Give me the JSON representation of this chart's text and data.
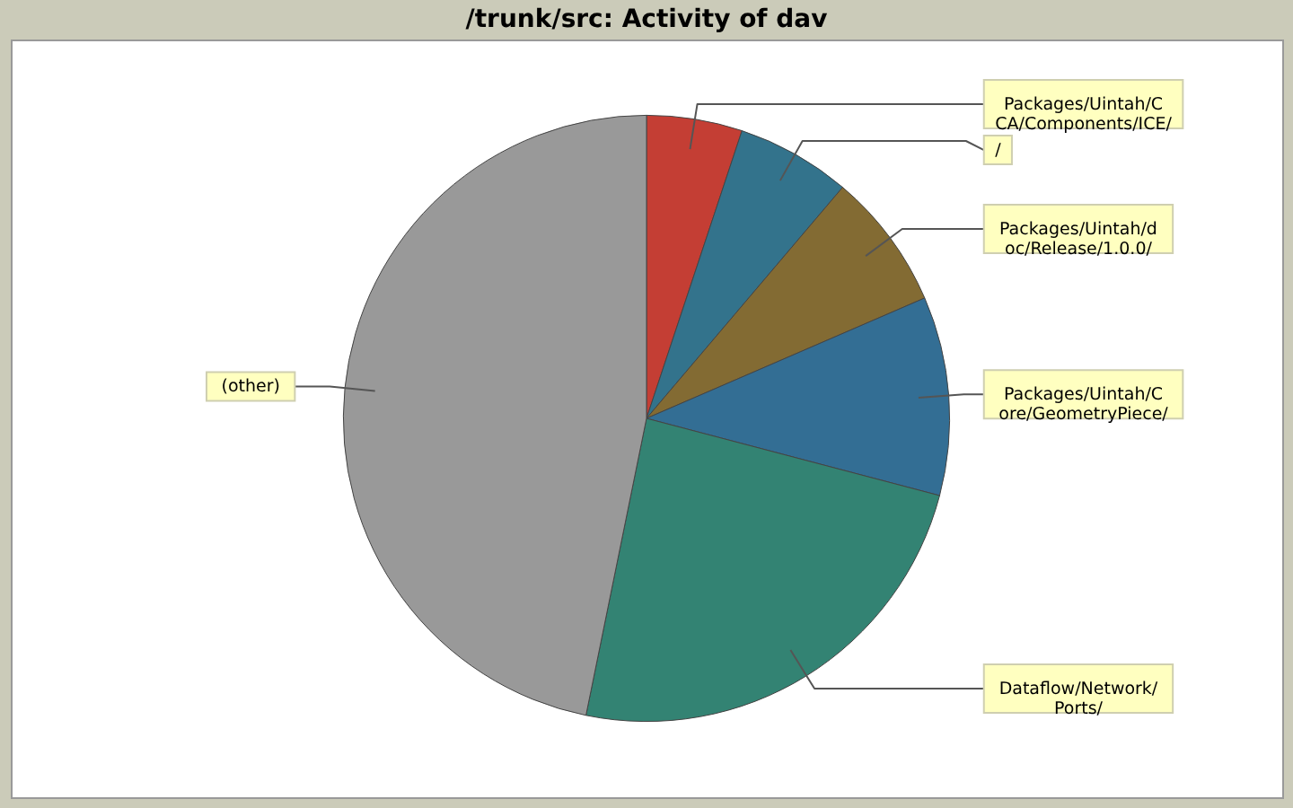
{
  "chart_data": {
    "type": "pie",
    "title": "/trunk/src: Activity of dav",
    "categories": [
      "Packages/Uintah/CCA/Components/ICE/",
      "/",
      "Packages/Uintah/doc/Release/1.0.0/",
      "Packages/Uintah/Core/GeometryPiece/",
      "Dataflow/Network/Ports/",
      "(other)"
    ],
    "values": [
      5.1,
      6.1,
      7.3,
      10.6,
      24.1,
      46.8
    ],
    "colors": [
      "#c43e34",
      "#33738c",
      "#836b33",
      "#336e94",
      "#338373",
      "#999999"
    ]
  }
}
